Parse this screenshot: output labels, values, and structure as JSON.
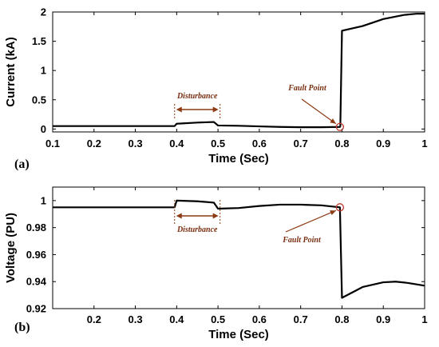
{
  "chart_data": [
    {
      "type": "line",
      "panel_label": "(a)",
      "xlabel": "Time (Sec)",
      "ylabel": "Current (kA)",
      "xlim": [
        0.1,
        1.0
      ],
      "ylim": [
        -0.05,
        2.0
      ],
      "xticks": [
        "0.1",
        "0.2",
        "0.3",
        "0.4",
        "0.5",
        "0.6",
        "0.7",
        "0.8",
        "0.9",
        "1"
      ],
      "yticks": [
        "0",
        "0.5",
        "1",
        "1.5",
        "2"
      ],
      "series": [
        {
          "color": "#000000",
          "x": [
            0.1,
            0.2,
            0.3,
            0.395,
            0.4,
            0.45,
            0.49,
            0.5,
            0.55,
            0.6,
            0.65,
            0.7,
            0.75,
            0.795,
            0.796,
            0.8,
            0.85,
            0.9,
            0.95,
            0.98,
            1.0
          ],
          "y": [
            0.05,
            0.05,
            0.05,
            0.05,
            0.09,
            0.11,
            0.12,
            0.06,
            0.055,
            0.045,
            0.035,
            0.03,
            0.03,
            0.035,
            0.05,
            1.68,
            1.76,
            1.88,
            1.95,
            1.97,
            1.97
          ]
        }
      ],
      "annotations": {
        "disturbance": {
          "text": "Disturbance",
          "x_range": [
            0.395,
            0.505
          ]
        },
        "fault": {
          "text": "Fault Point",
          "x": 0.795,
          "y": 0.035
        }
      }
    },
    {
      "type": "line",
      "panel_label": "(b)",
      "xlabel": "Time (Sec)",
      "ylabel": "Voltage (PU)",
      "xlim": [
        0.1,
        1.0
      ],
      "ylim": [
        0.92,
        1.01
      ],
      "xticks": [
        "0.2",
        "0.3",
        "0.4",
        "0.5",
        "0.6",
        "0.7",
        "0.8",
        "0.9",
        "1"
      ],
      "yticks": [
        "0.92",
        "0.94",
        "0.96",
        "0.98",
        "1"
      ],
      "series": [
        {
          "color": "#000000",
          "x": [
            0.1,
            0.2,
            0.3,
            0.395,
            0.4,
            0.45,
            0.49,
            0.5,
            0.55,
            0.6,
            0.65,
            0.7,
            0.75,
            0.795,
            0.8,
            0.85,
            0.9,
            0.93,
            0.96,
            1.0
          ],
          "y": [
            0.995,
            0.995,
            0.995,
            0.995,
            1.0,
            0.9995,
            0.9985,
            0.994,
            0.9945,
            0.996,
            0.997,
            0.997,
            0.9965,
            0.995,
            0.928,
            0.936,
            0.9395,
            0.94,
            0.939,
            0.937
          ]
        }
      ],
      "annotations": {
        "disturbance": {
          "text": "Disturbance",
          "x_range": [
            0.395,
            0.505
          ]
        },
        "fault": {
          "text": "Fault Point",
          "x": 0.795,
          "y": 0.995
        }
      }
    }
  ]
}
